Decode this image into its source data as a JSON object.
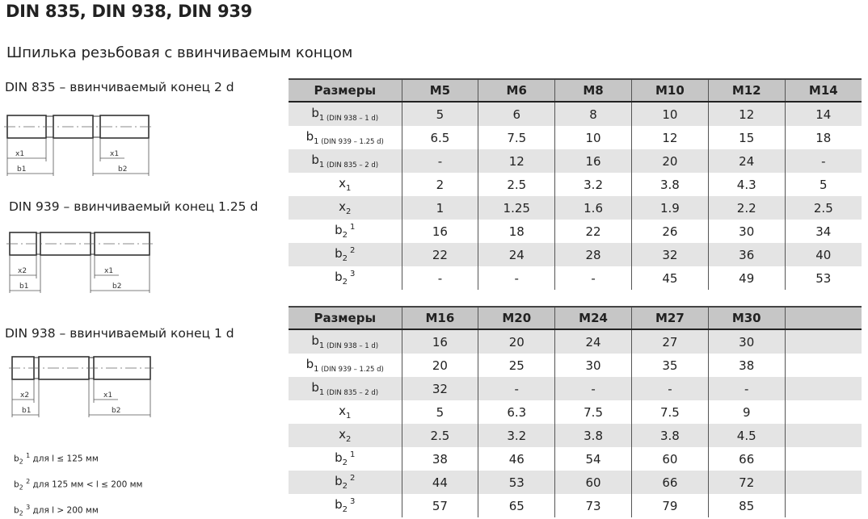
{
  "title": "DIN 835, DIN 938, DIN 939",
  "subtitle": "Шпилька резьбовая с ввинчиваемым концом",
  "drawings": [
    {
      "label": "DIN 835 – ввинчиваемый конец 2 d",
      "dims": {
        "left_x": "x1",
        "left_b": "b1",
        "right_x": "x1",
        "right_b": "b2"
      }
    },
    {
      "label": "DIN 939 – ввинчиваемый конец 1.25 d",
      "dims": {
        "left_x": "x2",
        "left_b": "b1",
        "right_x": "x1",
        "right_b": "b2"
      }
    },
    {
      "label": "DIN 938 – ввинчиваемый конец 1 d",
      "dims": {
        "left_x": "x2",
        "left_b": "b1",
        "right_x": "x1",
        "right_b": "b2"
      }
    }
  ],
  "notes": [
    {
      "base": "b",
      "sub": "2",
      "sup": "1",
      "text": "для l ≤ 125 мм"
    },
    {
      "base": "b",
      "sub": "2",
      "sup": "2",
      "text": "для 125 мм < l ≤ 200 мм"
    },
    {
      "base": "b",
      "sub": "2",
      "sup": "3",
      "text": "для l > 200 мм"
    }
  ],
  "row_labels": [
    {
      "base": "b",
      "sub": "1",
      "note": "(DIN 938 – 1 d)",
      "sup": ""
    },
    {
      "base": "b",
      "sub": "1",
      "note": "(DIN 939 – 1.25 d)",
      "sup": ""
    },
    {
      "base": "b",
      "sub": "1",
      "note": "(DIN 835 – 2 d)",
      "sup": ""
    },
    {
      "base": "x",
      "sub": "1",
      "note": "",
      "sup": ""
    },
    {
      "base": "x",
      "sub": "2",
      "note": "",
      "sup": ""
    },
    {
      "base": "b",
      "sub": "2",
      "note": "",
      "sup": "1"
    },
    {
      "base": "b",
      "sub": "2",
      "note": "",
      "sup": "2"
    },
    {
      "base": "b",
      "sub": "2",
      "note": "",
      "sup": "3"
    }
  ],
  "tables": [
    {
      "header": "Размеры",
      "columns": [
        "M5",
        "M6",
        "M8",
        "M10",
        "M12",
        "M14"
      ],
      "rows": [
        [
          "5",
          "6",
          "8",
          "10",
          "12",
          "14"
        ],
        [
          "6.5",
          "7.5",
          "10",
          "12",
          "15",
          "18"
        ],
        [
          "-",
          "12",
          "16",
          "20",
          "24",
          "-"
        ],
        [
          "2",
          "2.5",
          "3.2",
          "3.8",
          "4.3",
          "5"
        ],
        [
          "1",
          "1.25",
          "1.6",
          "1.9",
          "2.2",
          "2.5"
        ],
        [
          "16",
          "18",
          "22",
          "26",
          "30",
          "34"
        ],
        [
          "22",
          "24",
          "28",
          "32",
          "36",
          "40"
        ],
        [
          "-",
          "-",
          "-",
          "45",
          "49",
          "53"
        ]
      ]
    },
    {
      "header": "Размеры",
      "columns": [
        "M16",
        "M20",
        "M24",
        "M27",
        "M30",
        ""
      ],
      "rows": [
        [
          "16",
          "20",
          "24",
          "27",
          "30",
          ""
        ],
        [
          "20",
          "25",
          "30",
          "35",
          "38",
          ""
        ],
        [
          "32",
          "-",
          "-",
          "-",
          "-",
          ""
        ],
        [
          "5",
          "6.3",
          "7.5",
          "7.5",
          "9",
          ""
        ],
        [
          "2.5",
          "3.2",
          "3.8",
          "3.8",
          "4.5",
          ""
        ],
        [
          "38",
          "46",
          "54",
          "60",
          "66",
          ""
        ],
        [
          "44",
          "53",
          "60",
          "66",
          "72",
          ""
        ],
        [
          "57",
          "65",
          "73",
          "79",
          "85",
          ""
        ]
      ]
    }
  ]
}
